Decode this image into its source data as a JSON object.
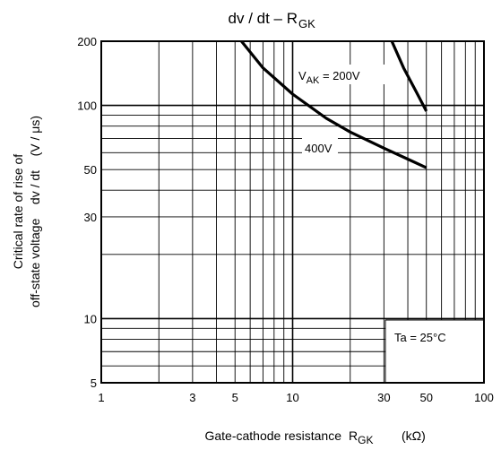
{
  "chart_data": {
    "type": "line",
    "title": "dv / dt – R",
    "title_sub": "GK",
    "xlabel": "Gate-cathode resistance",
    "xlabel_symbol": "R",
    "xlabel_symbol_sub": "GK",
    "xlabel_unit": "(kΩ)",
    "ylabel_lines": [
      "Critical rate of rise of",
      "off-state voltage    dv / dt    (V / μs)"
    ],
    "x_scale": "log",
    "y_scale": "log",
    "xlim": [
      1,
      100
    ],
    "ylim": [
      5,
      200
    ],
    "x_ticks": [
      1,
      3,
      5,
      10,
      30,
      50,
      100
    ],
    "y_ticks": [
      5,
      10,
      30,
      50,
      100,
      200
    ],
    "grid": true,
    "series": [
      {
        "name": "V",
        "name_sub": "AK",
        "name_suffix": " = 200V",
        "x": [
          33,
          38,
          44,
          50
        ],
        "y": [
          200,
          150,
          117,
          94
        ]
      },
      {
        "name": "400V",
        "x": [
          5.4,
          7,
          10,
          15,
          20,
          30,
          40,
          50
        ],
        "y": [
          200,
          150,
          113,
          87,
          75,
          63,
          56,
          51
        ]
      }
    ],
    "annotation": "Ta = 25°C"
  }
}
